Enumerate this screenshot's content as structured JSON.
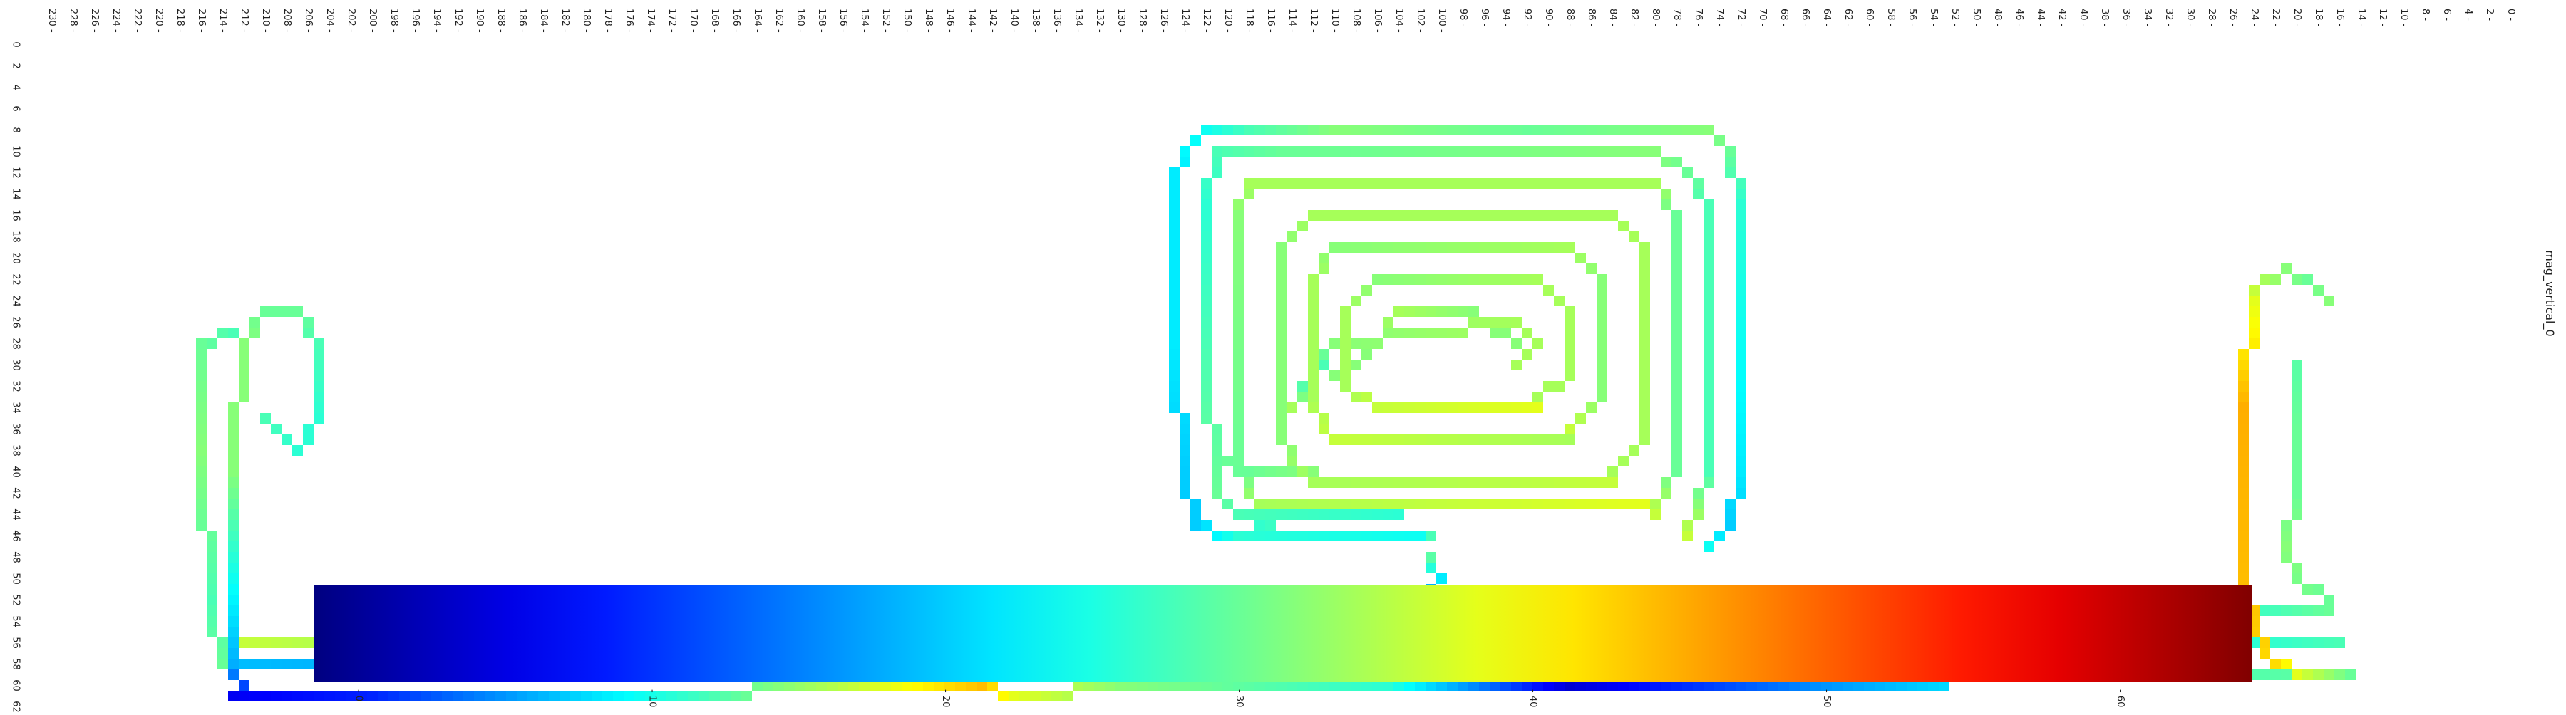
{
  "chart_data": {
    "type": "heatmap",
    "title": "",
    "series_label": "mag_vertical_0",
    "x_ticks": [
      0,
      2,
      4,
      6,
      8,
      10,
      12,
      14,
      16,
      18,
      20,
      22,
      24,
      26,
      28,
      30,
      32,
      34,
      36,
      38,
      40,
      42,
      44,
      46,
      48,
      50,
      52,
      54,
      56,
      58,
      60,
      62,
      64,
      66,
      68,
      70,
      72,
      74,
      76,
      78,
      80,
      82,
      84,
      86,
      88,
      90,
      92,
      94,
      96,
      98,
      100,
      102,
      104,
      106,
      108,
      110,
      112,
      114,
      116,
      118,
      120,
      122,
      124,
      126,
      128,
      130,
      132,
      134,
      136,
      138,
      140,
      142,
      144,
      146,
      148,
      150,
      152,
      154,
      156,
      158,
      160,
      162,
      164,
      166,
      168,
      170,
      172,
      174,
      176,
      178,
      180,
      182,
      184,
      186,
      188,
      190,
      192,
      194,
      196,
      198,
      200,
      202,
      204,
      206,
      208,
      210,
      212,
      214,
      216,
      218,
      220,
      222,
      224,
      226,
      228,
      230
    ],
    "y_ticks": [
      0,
      2,
      4,
      6,
      8,
      10,
      12,
      14,
      16,
      18,
      20,
      22,
      24,
      26,
      28,
      30,
      32,
      34,
      36,
      38,
      40,
      42,
      44,
      46,
      48,
      50,
      52,
      54,
      56,
      58,
      60,
      62
    ],
    "x_range": [
      0,
      231
    ],
    "y_range": [
      0,
      63
    ],
    "colorbar": {
      "colormap": "jet",
      "min": -1.5,
      "max": 64.5,
      "ticks": [
        0,
        10,
        20,
        30,
        40,
        50,
        60
      ]
    },
    "cells": [
      {
        "path": [
          [
            17,
            24
          ],
          [
            19,
            22
          ],
          [
            21,
            21
          ],
          [
            23,
            22
          ],
          [
            24,
            24
          ],
          [
            25,
            34
          ],
          [
            25,
            50
          ],
          [
            24,
            55
          ],
          [
            22,
            58
          ],
          [
            19,
            59
          ],
          [
            15,
            59
          ]
        ],
        "values": [
          32,
          30,
          32,
          34,
          38,
          45,
          44,
          43,
          42,
          36,
          30
        ]
      },
      {
        "path": [
          [
            20,
            30
          ],
          [
            20,
            36
          ],
          [
            20,
            42
          ],
          [
            21,
            47
          ],
          [
            20,
            50
          ],
          [
            17,
            52
          ]
        ],
        "values": [
          29,
          30,
          30,
          32,
          31,
          30
        ]
      },
      {
        "path": [
          [
            15,
            59
          ],
          [
            40,
            59
          ],
          [
            65,
            60
          ],
          [
            88,
            60
          ],
          [
            105,
            60
          ],
          [
            130,
            60
          ],
          [
            140,
            61
          ],
          [
            143,
            60
          ]
        ],
        "values": [
          30,
          26,
          16,
          4,
          26,
          32,
          38,
          44
        ]
      },
      {
        "path": [
          [
            16,
            56
          ],
          [
            40,
            56
          ],
          [
            65,
            57
          ],
          [
            90,
            58
          ],
          [
            105,
            57
          ],
          [
            125,
            57
          ],
          [
            142,
            57
          ]
        ],
        "values": [
          28,
          22,
          30,
          17,
          28,
          26,
          30
        ]
      },
      {
        "path": [
          [
            17,
            53
          ],
          [
            45,
            53
          ],
          [
            75,
            54
          ],
          [
            100,
            53
          ],
          [
            120,
            54
          ],
          [
            140,
            54
          ]
        ],
        "values": [
          30,
          18,
          26,
          34,
          26,
          34
        ]
      },
      {
        "path": [
          [
            101,
            52
          ],
          [
            100,
            50
          ],
          [
            101,
            48
          ]
        ],
        "values": [
          14,
          22,
          29
        ]
      },
      {
        "path": [
          [
            101,
            55
          ],
          [
            103,
            53
          ],
          [
            108,
            53
          ],
          [
            110,
            55
          ],
          [
            112,
            57
          ]
        ],
        "values": [
          30,
          30,
          33,
          32,
          32
        ]
      },
      {
        "path": [
          [
            143,
            60
          ],
          [
            155,
            60
          ],
          [
            175,
            61
          ],
          [
            200,
            61
          ],
          [
            213,
            61
          ]
        ],
        "values": [
          44,
          36,
          24,
          9,
          6
        ]
      },
      {
        "path": [
          [
            143,
            55
          ],
          [
            155,
            57
          ],
          [
            175,
            57
          ],
          [
            200,
            58
          ],
          [
            212,
            58
          ]
        ],
        "values": [
          34,
          30,
          22,
          18,
          19
        ]
      },
      {
        "path": [
          [
            143,
            52
          ],
          [
            155,
            53
          ],
          [
            175,
            53
          ],
          [
            194,
            52
          ],
          [
            200,
            55
          ],
          [
            212,
            56
          ]
        ],
        "values": [
          34,
          30,
          38,
          34,
          34,
          36
        ]
      },
      {
        "path": [
          [
            212,
            61
          ],
          [
            213,
            58
          ],
          [
            213,
            40
          ],
          [
            212,
            28
          ],
          [
            210,
            25
          ],
          [
            207,
            25
          ],
          [
            205,
            28
          ],
          [
            205,
            35
          ],
          [
            207,
            38
          ],
          [
            210,
            35
          ]
        ],
        "values": [
          8,
          18,
          32,
          32,
          30,
          30,
          28,
          26,
          26,
          28
        ]
      },
      {
        "path": [
          [
            214,
            58
          ],
          [
            215,
            52
          ],
          [
            216,
            38
          ],
          [
            216,
            28
          ],
          [
            213,
            27
          ]
        ],
        "values": [
          30,
          28,
          32,
          30,
          28
        ]
      },
      {
        "path": [
          [
            102,
            46
          ],
          [
            119,
            46
          ],
          [
            123,
            45
          ],
          [
            124,
            40
          ],
          [
            125,
            28
          ],
          [
            125,
            12
          ],
          [
            122,
            8
          ],
          [
            118,
            8
          ],
          [
            110,
            8
          ],
          [
            92,
            8
          ],
          [
            75,
            8
          ],
          [
            73,
            10
          ],
          [
            72,
            15
          ],
          [
            72,
            40
          ],
          [
            73,
            45
          ],
          [
            75,
            47
          ]
        ],
        "values": [
          24,
          26,
          20,
          20,
          22,
          22,
          24,
          28,
          32,
          30,
          32,
          30,
          26,
          22,
          20,
          24
        ]
      },
      {
        "path": [
          [
            77,
            46
          ],
          [
            75,
            40
          ],
          [
            75,
            15
          ],
          [
            77,
            12
          ],
          [
            80,
            10
          ],
          [
            115,
            10
          ],
          [
            121,
            10
          ],
          [
            122,
            15
          ],
          [
            122,
            28
          ],
          [
            121,
            42
          ],
          [
            119,
            44
          ],
          [
            104,
            44
          ]
        ],
        "values": [
          36,
          28,
          28,
          30,
          32,
          30,
          28,
          26,
          28,
          30,
          28,
          26
        ]
      },
      {
        "path": [
          [
            80,
            44
          ],
          [
            78,
            40
          ],
          [
            78,
            16
          ],
          [
            80,
            13
          ],
          [
            118,
            13
          ],
          [
            119,
            16
          ],
          [
            119,
            40
          ],
          [
            117,
            43
          ],
          [
            81,
            43
          ]
        ],
        "values": [
          36,
          30,
          30,
          34,
          34,
          32,
          30,
          34,
          38
        ]
      },
      {
        "path": [
          [
            84,
            40
          ],
          [
            81,
            37
          ],
          [
            81,
            19
          ],
          [
            84,
            16
          ],
          [
            112,
            16
          ],
          [
            115,
            19
          ],
          [
            115,
            37
          ],
          [
            112,
            41
          ],
          [
            84,
            41
          ]
        ],
        "values": [
          34,
          34,
          34,
          34,
          34,
          32,
          32,
          34,
          36
        ]
      },
      {
        "path": [
          [
            88,
            36
          ],
          [
            85,
            33
          ],
          [
            85,
            22
          ],
          [
            88,
            19
          ],
          [
            110,
            19
          ],
          [
            112,
            22
          ],
          [
            112,
            33
          ],
          [
            110,
            37
          ],
          [
            88,
            37
          ]
        ],
        "values": [
          36,
          32,
          32,
          34,
          32,
          34,
          34,
          36,
          34
        ]
      },
      {
        "path": [
          [
            91,
            33
          ],
          [
            88,
            31
          ],
          [
            88,
            25
          ],
          [
            91,
            22
          ],
          [
            106,
            22
          ],
          [
            109,
            25
          ],
          [
            109,
            32
          ],
          [
            106,
            34
          ],
          [
            91,
            34
          ]
        ],
        "values": [
          34,
          34,
          34,
          34,
          32,
          34,
          34,
          36,
          38
        ]
      },
      {
        "path": [
          [
            93,
            30
          ],
          [
            91,
            28
          ],
          [
            93,
            26
          ],
          [
            110,
            28
          ],
          [
            112,
            31
          ],
          [
            114,
            34
          ]
        ],
        "values": [
          34,
          34,
          34,
          32,
          26,
          34
        ]
      },
      {
        "path": [
          [
            93,
            28
          ],
          [
            97,
            25
          ],
          [
            104,
            25
          ],
          [
            106,
            28
          ],
          [
            110,
            31
          ]
        ],
        "values": [
          32,
          32,
          34,
          32,
          32
        ]
      },
      {
        "path": [
          [
            112,
            40
          ],
          [
            118,
            40
          ],
          [
            121,
            38
          ]
        ],
        "values": [
          32,
          30,
          30
        ]
      },
      {
        "path": [
          [
            101,
            46
          ],
          [
            114,
            46
          ],
          [
            118,
            44
          ]
        ],
        "values": [
          28,
          28,
          26
        ]
      }
    ]
  }
}
